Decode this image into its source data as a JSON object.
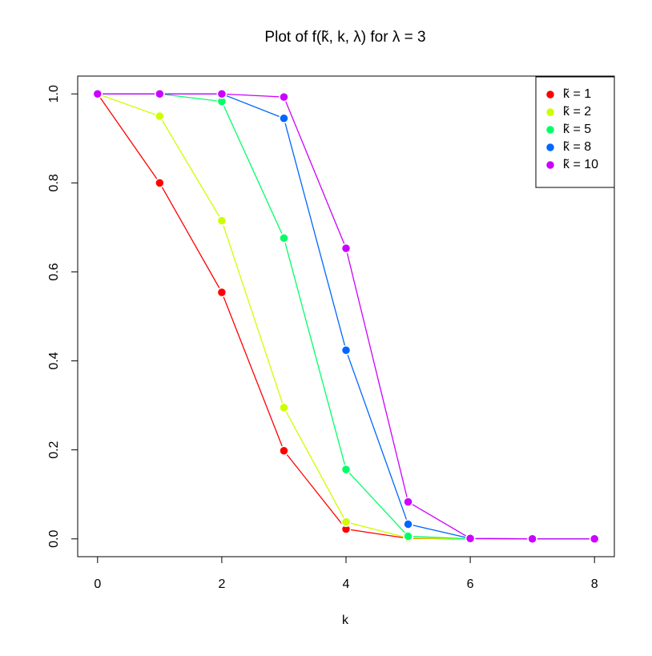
{
  "chart_data": {
    "type": "line",
    "title": "Plot of  f(k̃, k, λ)  for  λ = 3",
    "xlabel": "k",
    "x": [
      0,
      1,
      2,
      3,
      4,
      5,
      6,
      7,
      8
    ],
    "series": [
      {
        "name": "k̃ = 1",
        "color": "#ff0000",
        "values": [
          1.0,
          0.8,
          0.554,
          0.198,
          0.022,
          0.001,
          0.0,
          0.0,
          0.0
        ]
      },
      {
        "name": "k̃ = 2",
        "color": "#ccff00",
        "values": [
          1.0,
          0.95,
          0.715,
          0.295,
          0.038,
          0.002,
          0.0,
          0.0,
          0.0
        ]
      },
      {
        "name": "k̃ = 5",
        "color": "#00ff66",
        "values": [
          1.0,
          1.0,
          0.983,
          0.676,
          0.156,
          0.006,
          0.0,
          0.0,
          0.0
        ]
      },
      {
        "name": "k̃ = 8",
        "color": "#0066ff",
        "values": [
          1.0,
          1.0,
          1.0,
          0.945,
          0.424,
          0.033,
          0.001,
          0.0,
          0.0
        ]
      },
      {
        "name": "k̃ = 10",
        "color": "#cc00ff",
        "values": [
          1.0,
          1.0,
          1.0,
          0.993,
          0.653,
          0.083,
          0.001,
          0.0,
          0.0
        ]
      }
    ],
    "xlim": [
      -0.32,
      8.32
    ],
    "xticks": [
      0,
      2,
      4,
      6,
      8
    ],
    "ylim": [
      -0.04,
      1.04
    ],
    "yticks": [
      {
        "value": 0,
        "label": "0.0"
      },
      0.2,
      0.4,
      0.6,
      0.8,
      {
        "value": 1,
        "label": "1.0"
      }
    ],
    "legend": "top-right"
  }
}
